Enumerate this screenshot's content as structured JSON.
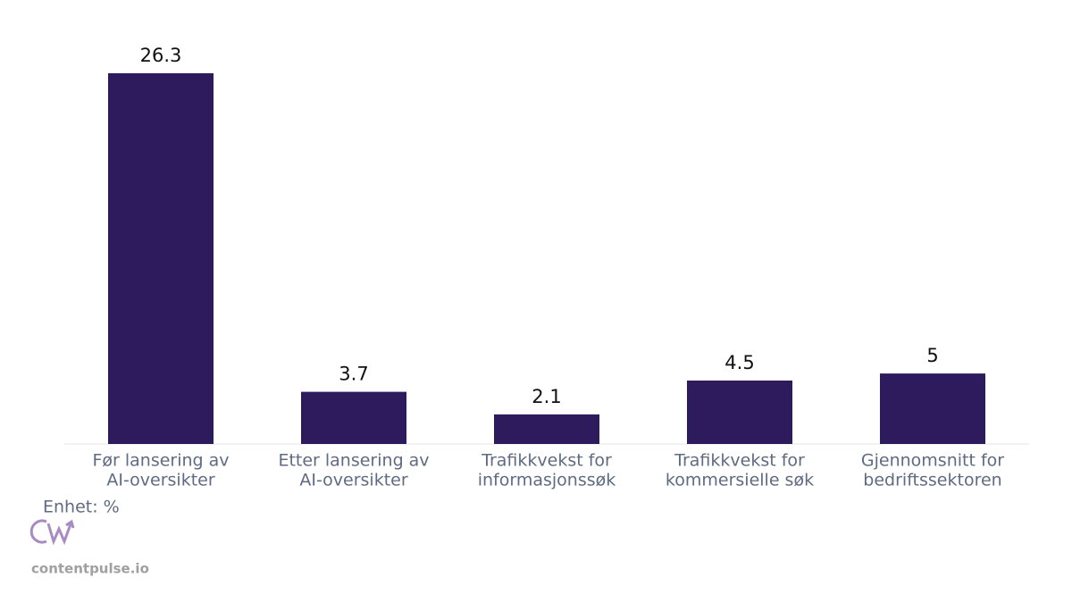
{
  "chart_data": {
    "type": "bar",
    "categories": [
      [
        "Før lansering av",
        "AI-oversikter"
      ],
      [
        "Etter lansering av",
        "AI-oversikter"
      ],
      [
        "Trafikkvekst for",
        "informasjonssøk"
      ],
      [
        "Trafikkvekst for",
        "kommersielle søk"
      ],
      [
        "Gjennomsnitt for",
        "bedriftssektoren"
      ]
    ],
    "values": [
      26.3,
      3.7,
      2.1,
      4.5,
      5
    ],
    "color": "#2d1b5e",
    "ylim": [
      0,
      26.3
    ],
    "unit_note": "Enhet: %"
  },
  "watermark": "contentpulse.io"
}
